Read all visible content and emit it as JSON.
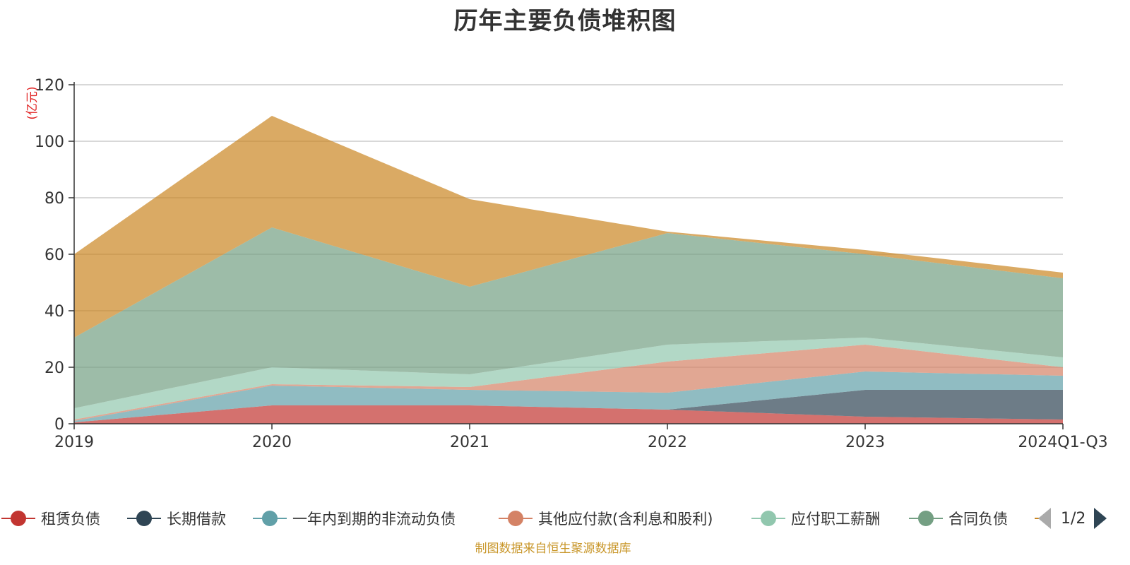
{
  "title": "历年主要负债堆积图",
  "source_note": "制图数据来自恒生聚源数据库",
  "pager": {
    "label": "1/2"
  },
  "chart_data": {
    "type": "area",
    "stacked": true,
    "title": "历年主要负债堆积图",
    "ylabel": "(亿元)",
    "ylim": [
      0,
      120
    ],
    "yticks": [
      0,
      20,
      40,
      60,
      80,
      100,
      120
    ],
    "grid": true,
    "legend_position": "bottom",
    "categories": [
      "2019",
      "2020",
      "2021",
      "2022",
      "2023",
      "2024Q1-Q3"
    ],
    "series": [
      {
        "name": "租赁负债",
        "color": "#c23531",
        "values": [
          0.5,
          6.5,
          6.5,
          5.0,
          2.5,
          1.5
        ]
      },
      {
        "name": "长期借款",
        "color": "#2f4554",
        "values": [
          0,
          0,
          0,
          0,
          9.5,
          10.5
        ]
      },
      {
        "name": "一年内到期的非流动负债",
        "color": "#61a0a8",
        "values": [
          0.5,
          7.0,
          5.5,
          6.0,
          6.5,
          5.0
        ]
      },
      {
        "name": "其他应付款(含利息和股利)",
        "color": "#d48265",
        "values": [
          0.5,
          0.5,
          1.0,
          11.0,
          9.5,
          3.0
        ]
      },
      {
        "name": "应付职工薪酬",
        "color": "#91c7ae",
        "values": [
          4.0,
          6.0,
          4.5,
          6.0,
          2.5,
          3.5
        ]
      },
      {
        "name": "合同负债",
        "color": "#749f83",
        "values": [
          25.0,
          49.5,
          31.0,
          39.5,
          29.5,
          28.0
        ]
      },
      {
        "name": "",
        "color": "#ca8622",
        "values": [
          29.5,
          39.5,
          31.0,
          0.5,
          1.5,
          2.0
        ]
      }
    ]
  }
}
